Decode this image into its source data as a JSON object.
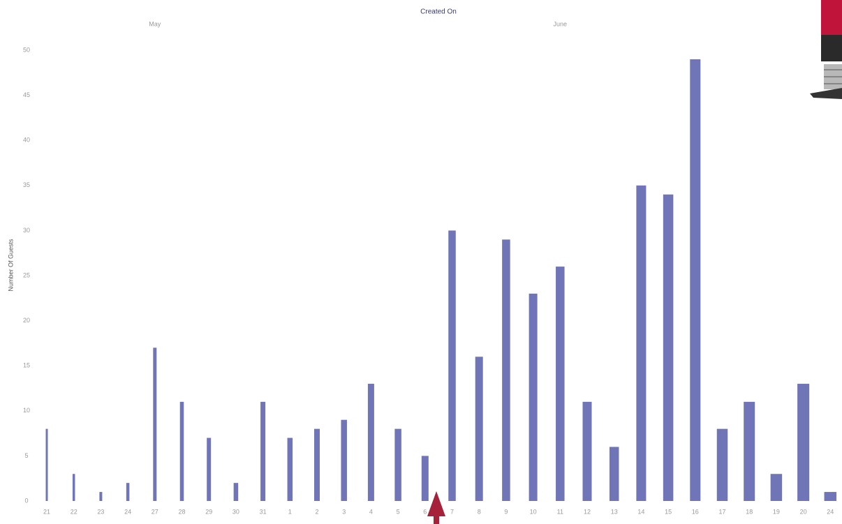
{
  "chart_data": {
    "type": "bar",
    "title": "Created On",
    "months": [
      "May",
      "June"
    ],
    "ylabel": "Number Of Guests",
    "categories": [
      "21",
      "22",
      "23",
      "24",
      "27",
      "28",
      "29",
      "30",
      "31",
      "1",
      "2",
      "3",
      "4",
      "5",
      "6",
      "7",
      "8",
      "9",
      "10",
      "11",
      "12",
      "13",
      "14",
      "15",
      "16",
      "17",
      "18",
      "19",
      "20",
      "24"
    ],
    "values": [
      8,
      3,
      1,
      2,
      17,
      11,
      7,
      2,
      11,
      7,
      8,
      9,
      13,
      8,
      5,
      30,
      16,
      29,
      23,
      26,
      11,
      6,
      35,
      34,
      49,
      8,
      11,
      3,
      13,
      1
    ],
    "color": "#6f75b6",
    "ylim": [
      0,
      50
    ],
    "yticks": [
      0,
      5,
      10,
      15,
      20,
      25,
      30,
      35,
      40,
      45,
      50
    ],
    "grid": false
  }
}
